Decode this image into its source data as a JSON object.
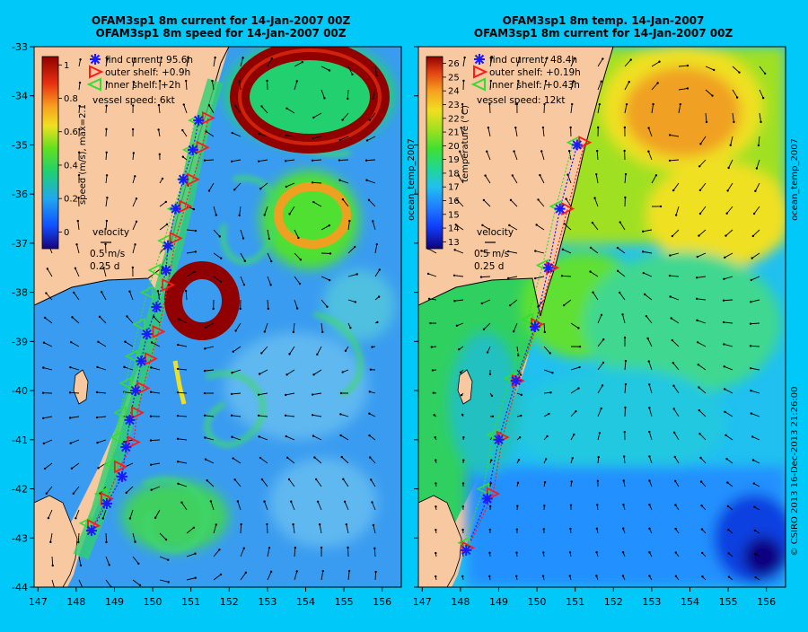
{
  "panels": [
    {
      "title_line1": "OFAM3sp1 8m current for 14-Jan-2007 00Z",
      "title_line2": "OFAM3sp1 8m speed for 14-Jan-2007 00Z",
      "colorbar": {
        "label": "speed (m/s), max=2.1",
        "ticks": [
          "1",
          "0.8",
          "0.6",
          "0.4",
          "0.2",
          "0"
        ],
        "tick_values": [
          1,
          0.8,
          0.6,
          0.4,
          0.2,
          0
        ],
        "range": [
          -0.1,
          1.05
        ]
      },
      "legend": {
        "find_current": "find current: 95.6h",
        "outer_shelf": "outer shelf: +0.9h",
        "inner_shelf": "inner shelf: +2h",
        "vessel_speed": "vessel speed: 6kt"
      },
      "velocity_key": {
        "title": "velocity",
        "speed": "0.5 m/s",
        "time": "0.25 d"
      },
      "side_label": "",
      "route": {
        "find_current": [
          [
            148.4,
            -42.85
          ],
          [
            148.8,
            -42.3
          ],
          [
            149.2,
            -41.75
          ],
          [
            149.3,
            -41.15
          ],
          [
            149.4,
            -40.6
          ],
          [
            149.55,
            -40.0
          ],
          [
            149.7,
            -39.4
          ],
          [
            149.85,
            -38.85
          ],
          [
            150.1,
            -38.3
          ],
          [
            150.35,
            -37.55
          ],
          [
            150.4,
            -37.05
          ],
          [
            150.6,
            -36.3
          ],
          [
            150.8,
            -35.7
          ],
          [
            151.05,
            -35.1
          ],
          [
            151.2,
            -34.5
          ]
        ],
        "outer_shelf": [
          [
            148.45,
            -42.75
          ],
          [
            148.8,
            -42.2
          ],
          [
            149.15,
            -41.55
          ],
          [
            149.5,
            -41.05
          ],
          [
            149.6,
            -40.45
          ],
          [
            149.75,
            -39.95
          ],
          [
            149.95,
            -39.35
          ],
          [
            150.15,
            -38.8
          ],
          [
            150.4,
            -37.85
          ],
          [
            150.6,
            -36.9
          ],
          [
            150.85,
            -36.25
          ],
          [
            151.05,
            -35.7
          ],
          [
            151.3,
            -35.05
          ],
          [
            151.45,
            -34.45
          ]
        ],
        "inner_shelf": [
          [
            148.25,
            -42.7
          ],
          [
            148.65,
            -42.1
          ],
          [
            148.9,
            -41.5
          ],
          [
            149.05,
            -40.95
          ],
          [
            149.15,
            -40.45
          ],
          [
            149.3,
            -39.85
          ],
          [
            149.45,
            -39.3
          ],
          [
            149.65,
            -38.65
          ],
          [
            149.85,
            -38.0
          ],
          [
            150.05,
            -37.55
          ],
          [
            150.3,
            -36.95
          ],
          [
            150.55,
            -36.3
          ],
          [
            150.8,
            -35.7
          ],
          [
            150.95,
            -35.1
          ],
          [
            151.1,
            -34.5
          ]
        ]
      }
    },
    {
      "title_line1": "OFAM3sp1 8m temp. 14-Jan-2007",
      "title_line2": "OFAM3sp1 8m current for 14-Jan-2007 00Z",
      "colorbar": {
        "label": "temperature (°C)",
        "ticks": [
          "26",
          "25",
          "24",
          "23",
          "22",
          "21",
          "20",
          "19",
          "18",
          "17",
          "16",
          "15",
          "14",
          "13"
        ],
        "tick_values": [
          26,
          25,
          24,
          23,
          22,
          21,
          20,
          19,
          18,
          17,
          16,
          15,
          14,
          13
        ],
        "range": [
          12.5,
          26.5
        ]
      },
      "legend": {
        "find_current": "find current: 48.4h",
        "outer_shelf": "outer shelf: +0.19h",
        "inner_shelf": "inner shelf: +0.43h",
        "vessel_speed": "vessel speed: 12kt"
      },
      "velocity_key": {
        "title": "velocity",
        "speed": "0.5 m/s",
        "time": "0.25 d"
      },
      "side_label": "ocean_temp_2007",
      "route": {
        "find_current": [
          [
            148.15,
            -43.25
          ],
          [
            148.7,
            -42.2
          ],
          [
            149.0,
            -41.0
          ],
          [
            149.45,
            -39.8
          ],
          [
            149.95,
            -38.7
          ],
          [
            150.3,
            -37.5
          ],
          [
            150.6,
            -36.3
          ],
          [
            151.05,
            -35.0
          ]
        ],
        "outer_shelf": [
          [
            148.2,
            -43.2
          ],
          [
            148.85,
            -42.1
          ],
          [
            149.1,
            -40.95
          ],
          [
            149.5,
            -39.8
          ],
          [
            150.0,
            -38.65
          ],
          [
            150.4,
            -37.5
          ],
          [
            150.8,
            -36.3
          ],
          [
            151.25,
            -34.95
          ]
        ],
        "inner_shelf": [
          [
            148.1,
            -43.1
          ],
          [
            148.6,
            -42.0
          ],
          [
            148.85,
            -40.9
          ],
          [
            149.3,
            -39.75
          ],
          [
            149.75,
            -38.55
          ],
          [
            150.15,
            -37.45
          ],
          [
            150.5,
            -36.25
          ],
          [
            150.95,
            -34.95
          ]
        ]
      }
    }
  ],
  "left_side_label": "ocean_temp_2007",
  "copyright": "© CSIRO 2013   16-Dec-2013 21:26:00",
  "axes": {
    "x_ticks": [
      "147",
      "148",
      "149",
      "150",
      "151",
      "152",
      "153",
      "154",
      "155",
      "156"
    ],
    "x_values": [
      147,
      148,
      149,
      150,
      151,
      152,
      153,
      154,
      155,
      156
    ],
    "y_ticks": [
      "-33",
      "-34",
      "-35",
      "-36",
      "-37",
      "-38",
      "-39",
      "-40",
      "-41",
      "-42",
      "-43",
      "-44"
    ],
    "y_values": [
      -33,
      -34,
      -35,
      -36,
      -37,
      -38,
      -39,
      -40,
      -41,
      -42,
      -43,
      -44
    ],
    "lon_range": [
      146.9,
      156.5
    ],
    "lat_range": [
      -44,
      -33
    ]
  },
  "colors": {
    "background": "#00c8f8",
    "land": "#f8c8a0",
    "find_current": "#1a1aff",
    "outer_shelf": "#ff1a1a",
    "inner_shelf": "#33dd33"
  }
}
